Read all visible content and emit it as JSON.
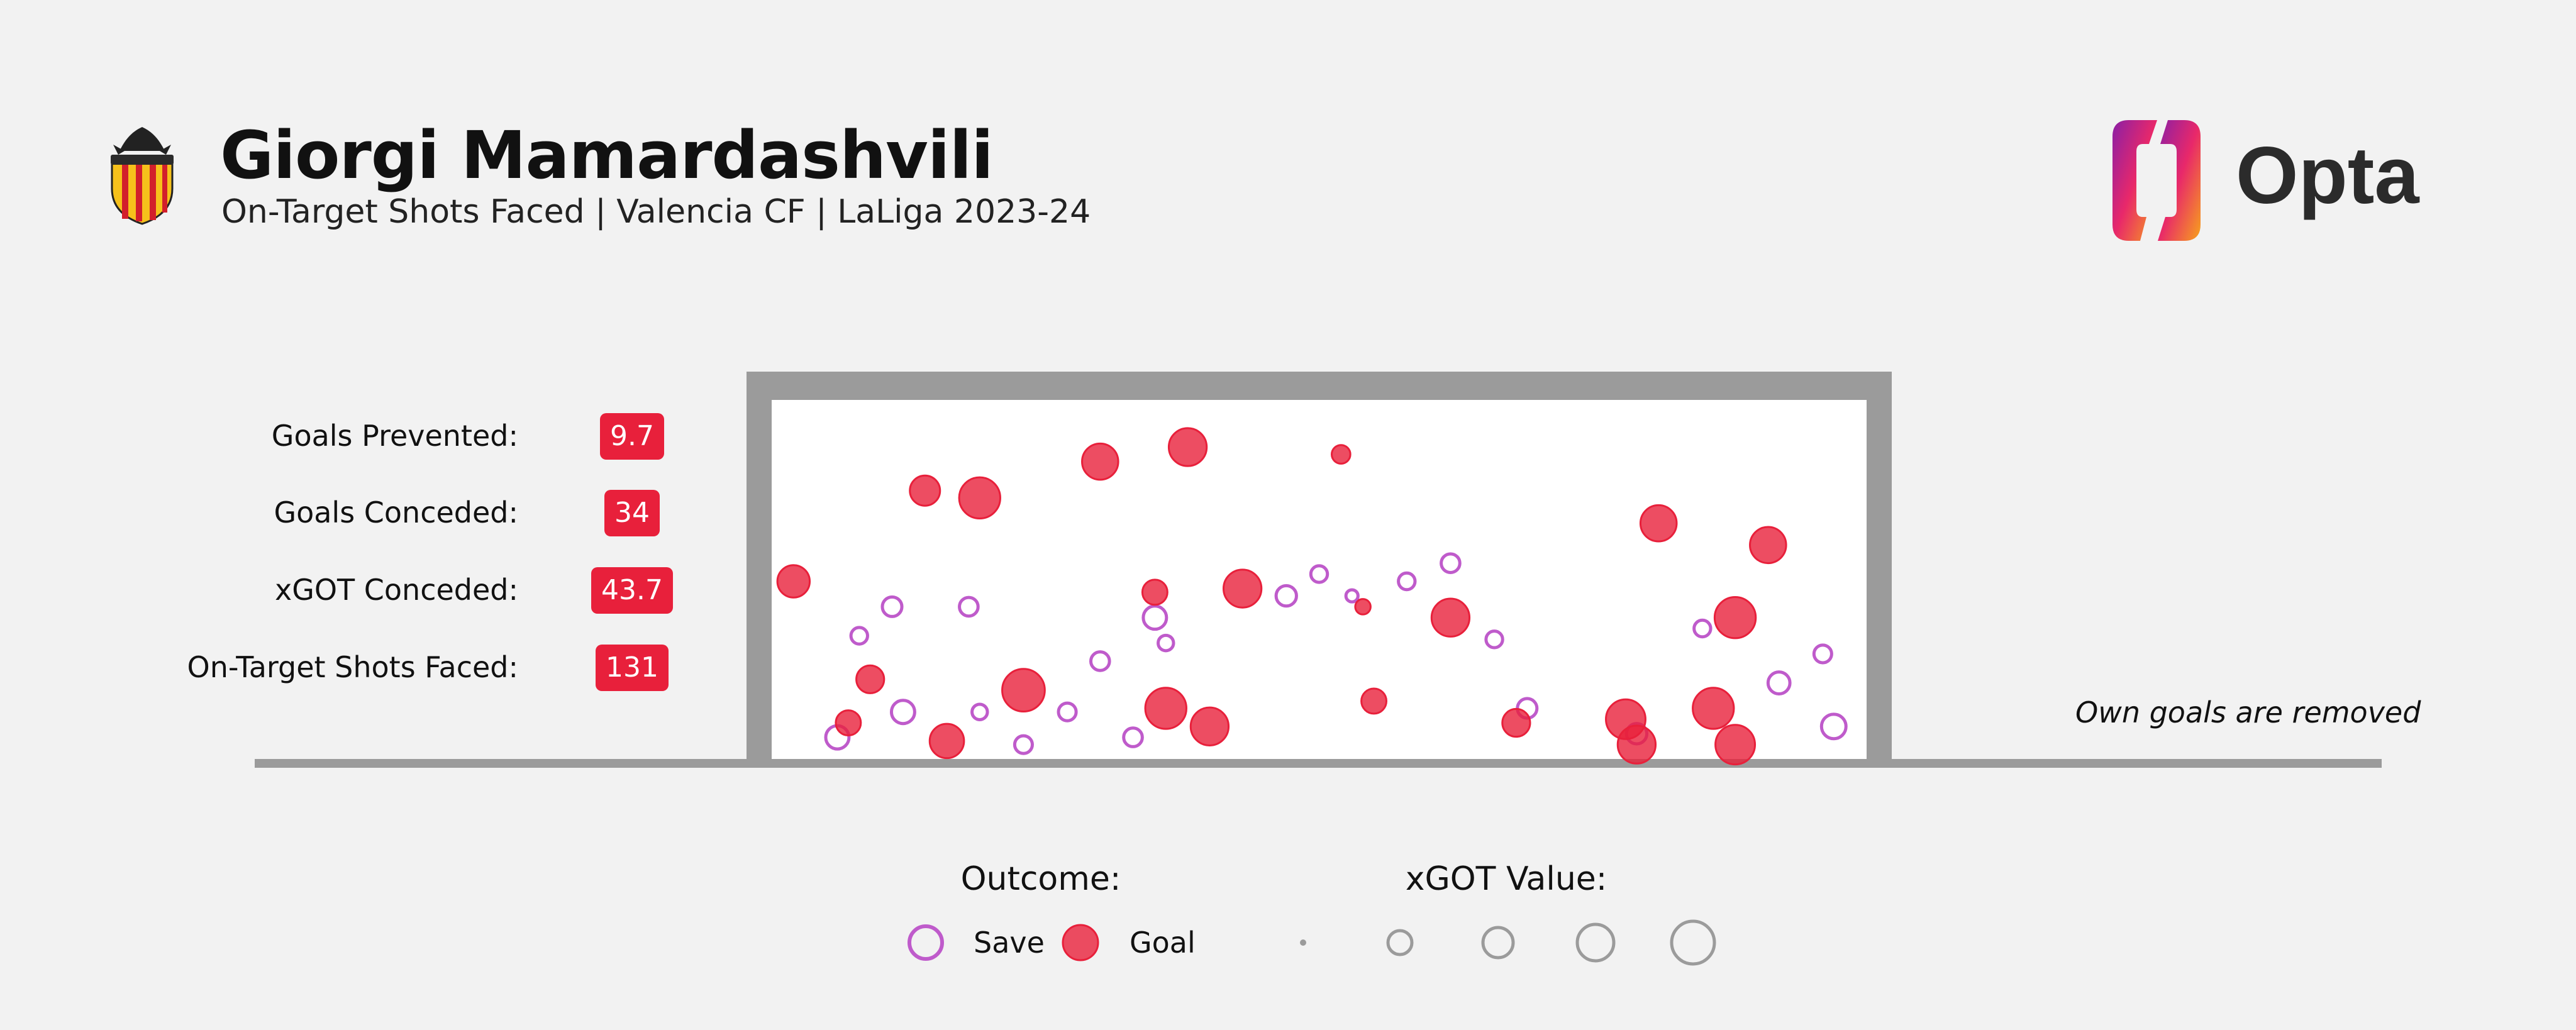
{
  "header": {
    "player_name": "Giorgi Mamardashvili",
    "subtitle": "On-Target Shots Faced | Valencia CF | LaLiga 2023-24",
    "club_crest_icon": "valencia-cf-crest",
    "brand_logo_text": "Opta"
  },
  "stats": [
    {
      "label": "Goals Prevented:",
      "value": "9.7"
    },
    {
      "label": "Goals Conceded:",
      "value": "34"
    },
    {
      "label": "xGOT Conceded:",
      "value": "43.7"
    },
    {
      "label": "On-Target Shots Faced:",
      "value": "131"
    }
  ],
  "note": "Own goals are removed",
  "legend": {
    "outcome_title": "Outcome:",
    "save_label": "Save",
    "goal_label": "Goal",
    "xgot_title": "xGOT Value:"
  },
  "colors": {
    "save": "#bf5bcb",
    "goal": "#e8203b",
    "frame": "#9b9b9b",
    "goal_mouth": "#ffffff",
    "background": "#f2f2f2"
  },
  "chart_data": {
    "type": "scatter",
    "axes_shown": false,
    "grid": false,
    "outcome_categories": [
      "Save",
      "Goal"
    ],
    "size_encoding": "xGOT Value",
    "save_shots": [
      {
        "x": 0.06,
        "y": 0.93,
        "xgot": 0.12
      },
      {
        "x": 0.12,
        "y": 0.86,
        "xgot": 0.12
      },
      {
        "x": 0.18,
        "y": 0.57,
        "xgot": 0.06
      },
      {
        "x": 0.27,
        "y": 0.86,
        "xgot": 0.05
      },
      {
        "x": 0.3,
        "y": 0.72,
        "xgot": 0.06
      },
      {
        "x": 0.36,
        "y": 0.67,
        "xgot": 0.03
      },
      {
        "x": 0.35,
        "y": 0.6,
        "xgot": 0.12
      },
      {
        "x": 0.47,
        "y": 0.54,
        "xgot": 0.08
      },
      {
        "x": 0.5,
        "y": 0.48,
        "xgot": 0.04
      },
      {
        "x": 0.53,
        "y": 0.54,
        "xgot": 0.01
      },
      {
        "x": 0.58,
        "y": 0.5,
        "xgot": 0.04
      },
      {
        "x": 0.62,
        "y": 0.45,
        "xgot": 0.06
      },
      {
        "x": 0.66,
        "y": 0.66,
        "xgot": 0.04
      },
      {
        "x": 0.69,
        "y": 0.85,
        "xgot": 0.07
      },
      {
        "x": 0.79,
        "y": 0.92,
        "xgot": 0.08
      },
      {
        "x": 0.85,
        "y": 0.63,
        "xgot": 0.04
      },
      {
        "x": 0.92,
        "y": 0.78,
        "xgot": 0.1
      },
      {
        "x": 0.96,
        "y": 0.7,
        "xgot": 0.05
      },
      {
        "x": 0.97,
        "y": 0.9,
        "xgot": 0.14
      },
      {
        "x": 0.08,
        "y": 0.65,
        "xgot": 0.04
      },
      {
        "x": 0.11,
        "y": 0.57,
        "xgot": 0.07
      },
      {
        "x": 0.23,
        "y": 0.95,
        "xgot": 0.05
      },
      {
        "x": 0.33,
        "y": 0.93,
        "xgot": 0.06
      },
      {
        "x": 0.19,
        "y": 0.86,
        "xgot": 0.03
      }
    ],
    "goal_shots": [
      {
        "x": 0.02,
        "y": 0.5,
        "xgot": 0.3
      },
      {
        "x": 0.14,
        "y": 0.25,
        "xgot": 0.25
      },
      {
        "x": 0.19,
        "y": 0.27,
        "xgot": 0.55
      },
      {
        "x": 0.3,
        "y": 0.17,
        "xgot": 0.4
      },
      {
        "x": 0.38,
        "y": 0.13,
        "xgot": 0.45
      },
      {
        "x": 0.43,
        "y": 0.52,
        "xgot": 0.45
      },
      {
        "x": 0.23,
        "y": 0.8,
        "xgot": 0.6
      },
      {
        "x": 0.09,
        "y": 0.77,
        "xgot": 0.2
      },
      {
        "x": 0.16,
        "y": 0.94,
        "xgot": 0.35
      },
      {
        "x": 0.36,
        "y": 0.85,
        "xgot": 0.55
      },
      {
        "x": 0.4,
        "y": 0.9,
        "xgot": 0.45
      },
      {
        "x": 0.62,
        "y": 0.6,
        "xgot": 0.45
      },
      {
        "x": 0.81,
        "y": 0.34,
        "xgot": 0.4
      },
      {
        "x": 0.88,
        "y": 0.6,
        "xgot": 0.55
      },
      {
        "x": 0.91,
        "y": 0.4,
        "xgot": 0.4
      },
      {
        "x": 0.86,
        "y": 0.85,
        "xgot": 0.55
      },
      {
        "x": 0.79,
        "y": 0.95,
        "xgot": 0.45
      },
      {
        "x": 0.88,
        "y": 0.95,
        "xgot": 0.5
      },
      {
        "x": 0.54,
        "y": 0.57,
        "xgot": 0.03
      },
      {
        "x": 0.52,
        "y": 0.15,
        "xgot": 0.06
      },
      {
        "x": 0.55,
        "y": 0.83,
        "xgot": 0.15
      },
      {
        "x": 0.07,
        "y": 0.89,
        "xgot": 0.15
      },
      {
        "x": 0.68,
        "y": 0.89,
        "xgot": 0.2
      },
      {
        "x": 0.35,
        "y": 0.53,
        "xgot": 0.15
      },
      {
        "x": 0.78,
        "y": 0.88,
        "xgot": 0.5
      }
    ],
    "legend_sizes": [
      0.0,
      0.25,
      0.5,
      0.75,
      1.0
    ]
  }
}
